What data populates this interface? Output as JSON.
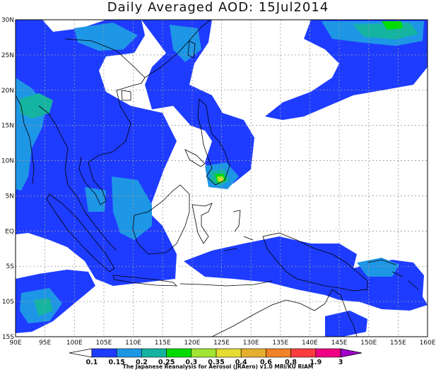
{
  "title": "Daily Averaged AOD: 15Jul2014",
  "credit": "The Japanese Reanalysis for Aerosol (JRAero) v1.0 MRI/KU RIAM",
  "map": {
    "lon_range": [
      90,
      160
    ],
    "lat_range": [
      -15,
      30
    ],
    "lon_labels": [
      "90E",
      "95E",
      "100E",
      "105E",
      "110E",
      "115E",
      "120E",
      "125E",
      "130E",
      "135E",
      "140E",
      "145E",
      "150E",
      "155E",
      "160E"
    ],
    "lat_labels": [
      "30N",
      "25N",
      "20N",
      "15N",
      "10N",
      "5N",
      "EQ",
      "5S",
      "10S",
      "15S"
    ]
  },
  "colorbar": {
    "labels": [
      "0.1",
      "0.15",
      "0.2",
      "0.25",
      "0.3",
      "0.35",
      "0.4",
      "0.6",
      "0.8",
      "1.9",
      "3"
    ],
    "colors": [
      "#1e3cff",
      "#1e96e6",
      "#14b4a0",
      "#00dc00",
      "#a0e632",
      "#e6dc32",
      "#e6af2d",
      "#f08228",
      "#fa3c3c",
      "#f00082",
      "#a000c8"
    ]
  }
}
